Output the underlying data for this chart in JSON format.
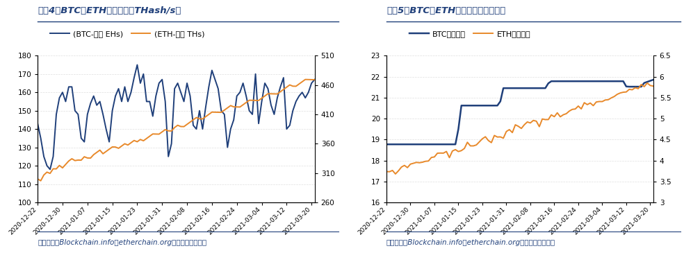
{
  "chart1": {
    "title": "图表4：BTC和ETH哈希速率（THash/s）",
    "legend1": "(BTC-左轴 EHs)",
    "legend2": "(ETH-右轴 THs)",
    "btc_color": "#1f3f7a",
    "eth_color": "#e8892a",
    "btc_ylim": [
      100,
      180
    ],
    "eth_ylim": [
      260,
      510
    ],
    "btc_yticks": [
      100,
      110,
      120,
      130,
      140,
      150,
      160,
      170,
      180
    ],
    "eth_yticks": [
      260,
      310,
      360,
      410,
      460,
      510
    ],
    "source": "资料来源：Blockchain.info、etherchain.org、国盛证券研究所"
  },
  "chart2": {
    "title": "图表5：BTC和ETH挖矿难度（相对量）",
    "legend1": "BTC（左轴）",
    "legend2": "ETH（右轴）",
    "btc_color": "#1f3f7a",
    "eth_color": "#e8892a",
    "btc_ylim": [
      16,
      23
    ],
    "eth_ylim": [
      3,
      6.5
    ],
    "btc_yticks": [
      16,
      17,
      18,
      19,
      20,
      21,
      22,
      23
    ],
    "eth_yticks": [
      3.0,
      3.5,
      4.0,
      4.5,
      5.0,
      5.5,
      6.0,
      6.5
    ],
    "source": "资料来源：Blockchain.info、etherchain.org、国盛证券研究所"
  },
  "xtick_labels": [
    "2020-12-22",
    "2020-12-30",
    "2021-01-07",
    "2021-01-15",
    "2021-01-23",
    "2021-01-31",
    "2021-02-08",
    "2021-02-16",
    "2021-02-24",
    "2021-03-04",
    "2021-03-12",
    "2021-03-20"
  ],
  "title_color": "#1f3f7a",
  "source_color": "#1f3f7a",
  "background_color": "#ffffff",
  "line_width": 1.4
}
